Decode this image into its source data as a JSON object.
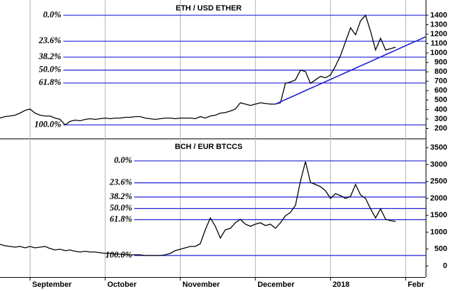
{
  "chart_data": [
    {
      "type": "line",
      "title": "ETH / USD ETHER",
      "ylim": [
        100,
        1525
      ],
      "yticks": [
        200,
        300,
        400,
        500,
        600,
        700,
        800,
        900,
        1000,
        1100,
        1200,
        1300,
        1400
      ],
      "levels": [
        {
          "label": "0.0%",
          "value": 1400
        },
        {
          "label": "23.6%",
          "value": 1125
        },
        {
          "label": "38.2%",
          "value": 956
        },
        {
          "label": "50.0%",
          "value": 818
        },
        {
          "label": "61.8%",
          "value": 682
        },
        {
          "label": "100.0%",
          "value": 237
        }
      ],
      "level_color": "#1c1cd6",
      "series": [
        {
          "color": "#000000",
          "values": [
            310,
            325,
            332,
            340,
            362,
            391,
            406,
            362,
            340,
            332,
            332,
            310,
            296,
            237,
            274,
            288,
            281,
            296,
            303,
            296,
            303,
            310,
            303,
            310,
            310,
            318,
            318,
            325,
            325,
            310,
            303,
            296,
            303,
            310,
            310,
            303,
            310,
            310,
            310,
            303,
            325,
            310,
            332,
            340,
            362,
            369,
            384,
            406,
            472,
            458,
            443,
            458,
            472,
            465,
            458,
            458,
            472,
            678,
            693,
            715,
            818,
            803,
            678,
            715,
            752,
            737,
            767,
            862,
            973,
            1120,
            1267,
            1193,
            1341,
            1400,
            1230,
            1032,
            1156,
            1032,
            1046,
            1061,
            null,
            null,
            null,
            null,
            null,
            null
          ]
        },
        {
          "color": "#1c1cd6",
          "values": [
            null,
            null,
            null,
            null,
            null,
            null,
            null,
            null,
            null,
            null,
            null,
            null,
            null,
            null,
            null,
            null,
            null,
            null,
            null,
            null,
            null,
            null,
            null,
            null,
            null,
            null,
            null,
            null,
            null,
            null,
            null,
            null,
            null,
            null,
            null,
            null,
            null,
            null,
            null,
            null,
            null,
            null,
            null,
            null,
            null,
            null,
            null,
            null,
            null,
            null,
            null,
            null,
            null,
            null,
            null,
            458,
            482,
            506,
            529,
            553,
            577,
            601,
            625,
            648,
            672,
            696,
            720,
            744,
            767,
            791,
            815,
            839,
            863,
            886,
            910,
            934,
            958,
            982,
            1005,
            1029,
            1053,
            1077,
            1101,
            1124,
            1148,
            1172
          ]
        }
      ]
    },
    {
      "type": "line",
      "title": "BCH / EUR BTCCS",
      "ylim": [
        -330,
        3730
      ],
      "yticks": [
        0,
        500,
        1000,
        1500,
        2000,
        2500,
        3000,
        3500
      ],
      "levels": [
        {
          "label": "0.0%",
          "value": 3110
        },
        {
          "label": "23.6%",
          "value": 2460
        },
        {
          "label": "38.2%",
          "value": 2040
        },
        {
          "label": "50.0%",
          "value": 1700
        },
        {
          "label": "61.8%",
          "value": 1370
        },
        {
          "label": "100.0%",
          "value": 309
        }
      ],
      "level_color": "#1c1cd6",
      "categories": [
        null,
        null,
        null,
        null,
        null,
        null,
        "September",
        null,
        null,
        null,
        null,
        null,
        null,
        null,
        null,
        null,
        null,
        null,
        null,
        null,
        null,
        "October",
        null,
        null,
        null,
        null,
        null,
        null,
        null,
        null,
        null,
        null,
        null,
        null,
        null,
        null,
        "November",
        null,
        null,
        null,
        null,
        null,
        null,
        null,
        null,
        null,
        null,
        null,
        null,
        null,
        null,
        "December",
        null,
        null,
        null,
        null,
        null,
        null,
        null,
        null,
        null,
        null,
        null,
        null,
        null,
        null,
        "2018",
        null,
        null,
        null,
        null,
        null,
        null,
        null,
        null,
        null,
        null,
        null,
        null,
        null,
        null,
        "Febr",
        null,
        null,
        null,
        null
      ],
      "series": [
        {
          "color": "#000000",
          "values": [
            639,
            597,
            577,
            556,
            577,
            536,
            577,
            536,
            556,
            577,
            515,
            474,
            494,
            453,
            474,
            433,
            412,
            433,
            412,
            412,
            391,
            371,
            371,
            350,
            350,
            330,
            330,
            330,
            330,
            309,
            309,
            309,
            309,
            330,
            371,
            453,
            494,
            536,
            577,
            577,
            659,
            1071,
            1421,
            1174,
            824,
            1071,
            1112,
            1277,
            1380,
            1236,
            1174,
            1236,
            1277,
            1195,
            1236,
            1112,
            1277,
            1483,
            1586,
            1792,
            2513,
            3090,
            2472,
            2410,
            2348,
            2225,
            1998,
            2142,
            2081,
            1998,
            2060,
            2410,
            2101,
            1998,
            1689,
            1421,
            1689,
            1380,
            1339,
            1318,
            null,
            null,
            null,
            null,
            null,
            null
          ]
        }
      ]
    }
  ]
}
